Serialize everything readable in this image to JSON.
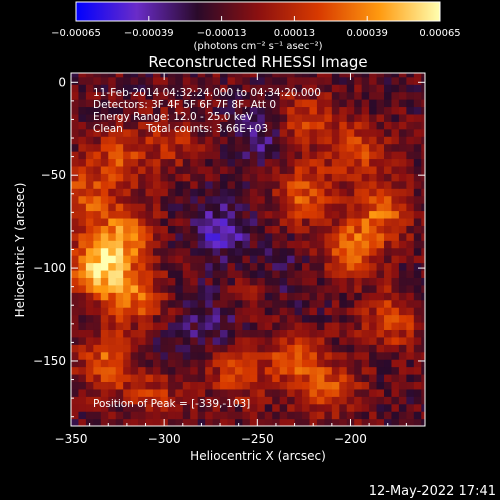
{
  "chart_data": {
    "type": "heatmap",
    "title": "Reconstructed RHESSI Image",
    "xlabel": "Heliocentric X (arcsec)",
    "ylabel": "Heliocentric Y (arcsec)",
    "xlim": [
      -350,
      -160
    ],
    "ylim": [
      -185,
      5
    ],
    "xticks": [
      -350,
      -300,
      -250,
      -200
    ],
    "xtick_labels": [
      "−350",
      "−300",
      "−250",
      "−200"
    ],
    "yticks": [
      0,
      -50,
      -100,
      -150
    ],
    "ytick_labels": [
      "0",
      "−50",
      "−100",
      "−150"
    ],
    "colorbar": {
      "min": -0.00065,
      "max": 0.00065,
      "ticks": [
        -0.00065,
        -0.00039,
        -0.00013,
        0.00013,
        0.00039,
        0.00065
      ],
      "tick_labels": [
        "−0.00065",
        "−0.00039",
        "−0.00013",
        "0.00013",
        "0.00039",
        "0.00065"
      ],
      "unit_label": "(photons cm⁻² s⁻¹ asec⁻²)",
      "colors": [
        "#0000ff",
        "#6a2cc8",
        "#2a0a2a",
        "#8b1010",
        "#d83a00",
        "#ff9a10",
        "#ffffb0"
      ]
    },
    "annotations": {
      "time": "11-Feb-2014 04:32:24.000 to 04:34:20.000",
      "detectors": "Detectors: 3F 4F 5F 6F 7F 8F, Att 0",
      "energy": "Energy Range: 12.0 - 25.0 keV",
      "clean": "Clean",
      "counts": "Total counts: 3.66E+03",
      "peak": "Position of Peak = [-339,-103]"
    },
    "peak": {
      "x": -339,
      "y": -103
    },
    "bright_regions": [
      {
        "x": -335,
        "y": -100,
        "w": 0.00062
      },
      {
        "x": -322,
        "y": -82,
        "w": 0.00045
      },
      {
        "x": -316,
        "y": -115,
        "w": 0.0004
      },
      {
        "x": -344,
        "y": -62,
        "w": 0.00034
      },
      {
        "x": -325,
        "y": -40,
        "w": 0.00032
      },
      {
        "x": -296,
        "y": -32,
        "w": 0.00024
      },
      {
        "x": -331,
        "y": -150,
        "w": 0.00038
      },
      {
        "x": -305,
        "y": -165,
        "w": 0.0003
      },
      {
        "x": -262,
        "y": -156,
        "w": 0.0003
      },
      {
        "x": -230,
        "y": -150,
        "w": 0.00036
      },
      {
        "x": -210,
        "y": -165,
        "w": 0.0003
      },
      {
        "x": -200,
        "y": -90,
        "w": 0.00042
      },
      {
        "x": -183,
        "y": -70,
        "w": 0.0004
      },
      {
        "x": -226,
        "y": -60,
        "w": 0.00038
      },
      {
        "x": -198,
        "y": -36,
        "w": 0.00036
      },
      {
        "x": -225,
        "y": -20,
        "w": 0.00028
      },
      {
        "x": -178,
        "y": -128,
        "w": 0.00034
      },
      {
        "x": -248,
        "y": -110,
        "w": 0.0002
      }
    ],
    "dim_regions": [
      {
        "x": -270,
        "y": -80,
        "w": -0.0003
      },
      {
        "x": -240,
        "y": -105,
        "w": -0.00022
      },
      {
        "x": -300,
        "y": -150,
        "w": -0.00016
      },
      {
        "x": -250,
        "y": -30,
        "w": -0.0002
      },
      {
        "x": -275,
        "y": -130,
        "w": -0.00018
      }
    ]
  },
  "footer": {
    "timestamp": "12-May-2022 17:41"
  }
}
